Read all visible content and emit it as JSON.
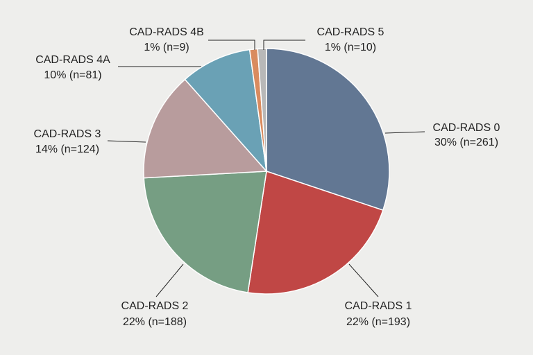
{
  "chart_data": {
    "type": "pie",
    "start": "top",
    "direction": "clockwise",
    "slices": [
      {
        "label": "CAD-RADS 0",
        "detail": "30% (n=261)",
        "value": 261,
        "color": "#627793"
      },
      {
        "label": "CAD-RADS 1",
        "detail": "22% (n=193)",
        "value": 193,
        "color": "#c04745"
      },
      {
        "label": "CAD-RADS 2",
        "detail": "22% (n=188)",
        "value": 188,
        "color": "#769e83"
      },
      {
        "label": "CAD-RADS 3",
        "detail": "14% (n=124)",
        "value": 124,
        "color": "#b89c9d"
      },
      {
        "label": "CAD-RADS 4A",
        "detail": "10% (n=81)",
        "value": 81,
        "color": "#6aa1b5"
      },
      {
        "label": "CAD-RADS 4B",
        "detail": "1% (n=9)",
        "value": 9,
        "color": "#d98b5f"
      },
      {
        "label": "CAD-RADS 5",
        "detail": "1% (n=10)",
        "value": 10,
        "color": "#b8b8b8"
      }
    ],
    "background": "#eeeeec"
  }
}
